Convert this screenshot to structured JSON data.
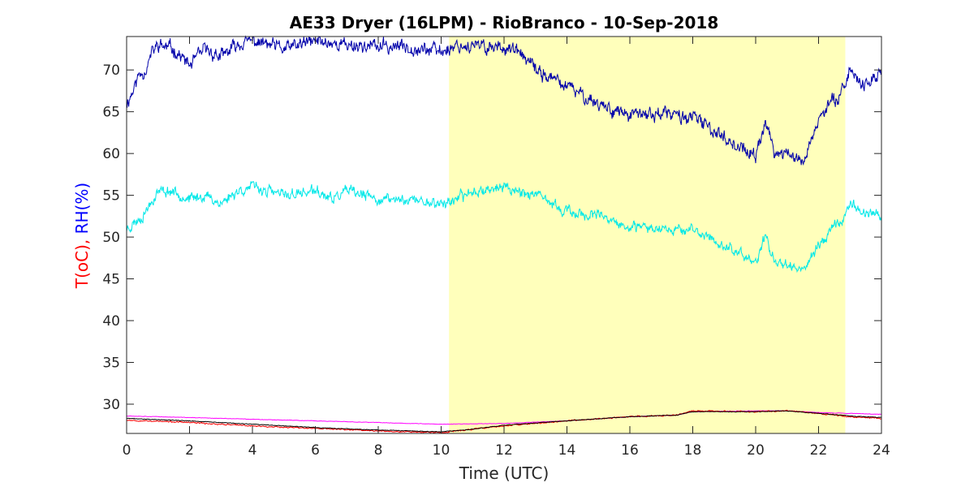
{
  "chart_data": {
    "type": "line",
    "title": "AE33 Dryer (16LPM)  - RioBranco - 10-Sep-2018",
    "xlabel": "Time (UTC)",
    "ylabel_parts": [
      {
        "text": "T(oC), ",
        "color": "#ff0000"
      },
      {
        "text": "RH(%)",
        "color": "#0000ff"
      }
    ],
    "xlim": [
      0,
      24
    ],
    "ylim": [
      26.5,
      74
    ],
    "xticks": [
      0,
      2,
      4,
      6,
      8,
      10,
      12,
      14,
      16,
      18,
      20,
      22,
      24
    ],
    "yticks": [
      30,
      35,
      40,
      45,
      50,
      55,
      60,
      65,
      70
    ],
    "grid": false,
    "legend": "none",
    "highlight": {
      "x0": 10.25,
      "x1": 22.85,
      "color": "#ffffbb"
    },
    "series": [
      {
        "color": "#0000aa",
        "noise": 0.9,
        "seed": 11,
        "points": [
          [
            0,
            66
          ],
          [
            0.2,
            67.5
          ],
          [
            0.4,
            69.5
          ],
          [
            0.6,
            70
          ],
          [
            0.8,
            72
          ],
          [
            1,
            73
          ],
          [
            1.5,
            72.5
          ],
          [
            2,
            70.5
          ],
          [
            2.5,
            72.5
          ],
          [
            3,
            71.5
          ],
          [
            3.5,
            73
          ],
          [
            4,
            73.5
          ],
          [
            5,
            72.5
          ],
          [
            6,
            73.5
          ],
          [
            7,
            73
          ],
          [
            8,
            72.8
          ],
          [
            9,
            72.8
          ],
          [
            10,
            72.2
          ],
          [
            10.5,
            73
          ],
          [
            11,
            72.8
          ],
          [
            12,
            72.8
          ],
          [
            12.5,
            72
          ],
          [
            13,
            70
          ],
          [
            14,
            68
          ],
          [
            15,
            66
          ],
          [
            16,
            64.5
          ],
          [
            17,
            64.8
          ],
          [
            18,
            64.3
          ],
          [
            19,
            62
          ],
          [
            20,
            59.5
          ],
          [
            20.3,
            64
          ],
          [
            20.6,
            60
          ],
          [
            21,
            60
          ],
          [
            21.5,
            59
          ],
          [
            22,
            64
          ],
          [
            22.5,
            66.5
          ],
          [
            22.8,
            68
          ],
          [
            23,
            70
          ],
          [
            23.5,
            68
          ],
          [
            24,
            70
          ]
        ]
      },
      {
        "color": "#00e8e8",
        "noise": 0.7,
        "seed": 23,
        "points": [
          [
            0,
            51
          ],
          [
            0.5,
            52.5
          ],
          [
            1,
            55.5
          ],
          [
            1.5,
            55.5
          ],
          [
            2,
            54.5
          ],
          [
            2.5,
            55
          ],
          [
            3,
            54
          ],
          [
            3.5,
            55.5
          ],
          [
            4,
            56
          ],
          [
            5,
            55
          ],
          [
            6,
            55.5
          ],
          [
            6.5,
            54.5
          ],
          [
            7,
            55.5
          ],
          [
            8,
            54.5
          ],
          [
            9,
            54.5
          ],
          [
            10,
            54
          ],
          [
            10.5,
            54.5
          ],
          [
            11,
            55.5
          ],
          [
            12,
            56
          ],
          [
            13,
            55
          ],
          [
            14,
            53
          ],
          [
            15,
            52.5
          ],
          [
            16,
            51
          ],
          [
            17,
            51.2
          ],
          [
            18,
            50.8
          ],
          [
            19,
            49
          ],
          [
            19.5,
            48
          ],
          [
            20,
            47
          ],
          [
            20.3,
            50
          ],
          [
            20.6,
            47
          ],
          [
            21,
            47
          ],
          [
            21.5,
            46
          ],
          [
            22,
            49
          ],
          [
            22.5,
            51.5
          ],
          [
            22.8,
            52
          ],
          [
            23,
            54
          ],
          [
            23.5,
            53
          ],
          [
            24,
            52.5
          ]
        ]
      },
      {
        "color": "#ff00ff",
        "noise": 0.03,
        "seed": 37,
        "points": [
          [
            0,
            28.6
          ],
          [
            2,
            28.4
          ],
          [
            4,
            28.2
          ],
          [
            6,
            28
          ],
          [
            8,
            27.8
          ],
          [
            10,
            27.6
          ],
          [
            12,
            27.7
          ],
          [
            14,
            28
          ],
          [
            16,
            28.5
          ],
          [
            17.5,
            28.7
          ],
          [
            18,
            29.1
          ],
          [
            20,
            29.2
          ],
          [
            21,
            29.2
          ],
          [
            22,
            29
          ],
          [
            23,
            28.9
          ],
          [
            24,
            28.8
          ]
        ]
      },
      {
        "color": "#ff0000",
        "noise": 0.08,
        "seed": 53,
        "points": [
          [
            0,
            28.1
          ],
          [
            2,
            27.8
          ],
          [
            4,
            27.4
          ],
          [
            6,
            27.1
          ],
          [
            8,
            26.8
          ],
          [
            10,
            26.6
          ],
          [
            11,
            27
          ],
          [
            12,
            27.4
          ],
          [
            14,
            28
          ],
          [
            16,
            28.5
          ],
          [
            17.5,
            28.7
          ],
          [
            18,
            29.2
          ],
          [
            20,
            29.1
          ],
          [
            21,
            29.2
          ],
          [
            22,
            28.9
          ],
          [
            23,
            28.5
          ],
          [
            24,
            28.3
          ]
        ]
      },
      {
        "color": "#000000",
        "noise": 0.04,
        "seed": 71,
        "points": [
          [
            0,
            28.3
          ],
          [
            2,
            28
          ],
          [
            4,
            27.6
          ],
          [
            6,
            27.2
          ],
          [
            8,
            26.9
          ],
          [
            10,
            26.7
          ],
          [
            11,
            27
          ],
          [
            12,
            27.5
          ],
          [
            14,
            28
          ],
          [
            16,
            28.5
          ],
          [
            17.5,
            28.7
          ],
          [
            18,
            29.1
          ],
          [
            20,
            29.1
          ],
          [
            21,
            29.2
          ],
          [
            22,
            28.9
          ],
          [
            23,
            28.6
          ],
          [
            24,
            28.4
          ]
        ]
      }
    ]
  }
}
